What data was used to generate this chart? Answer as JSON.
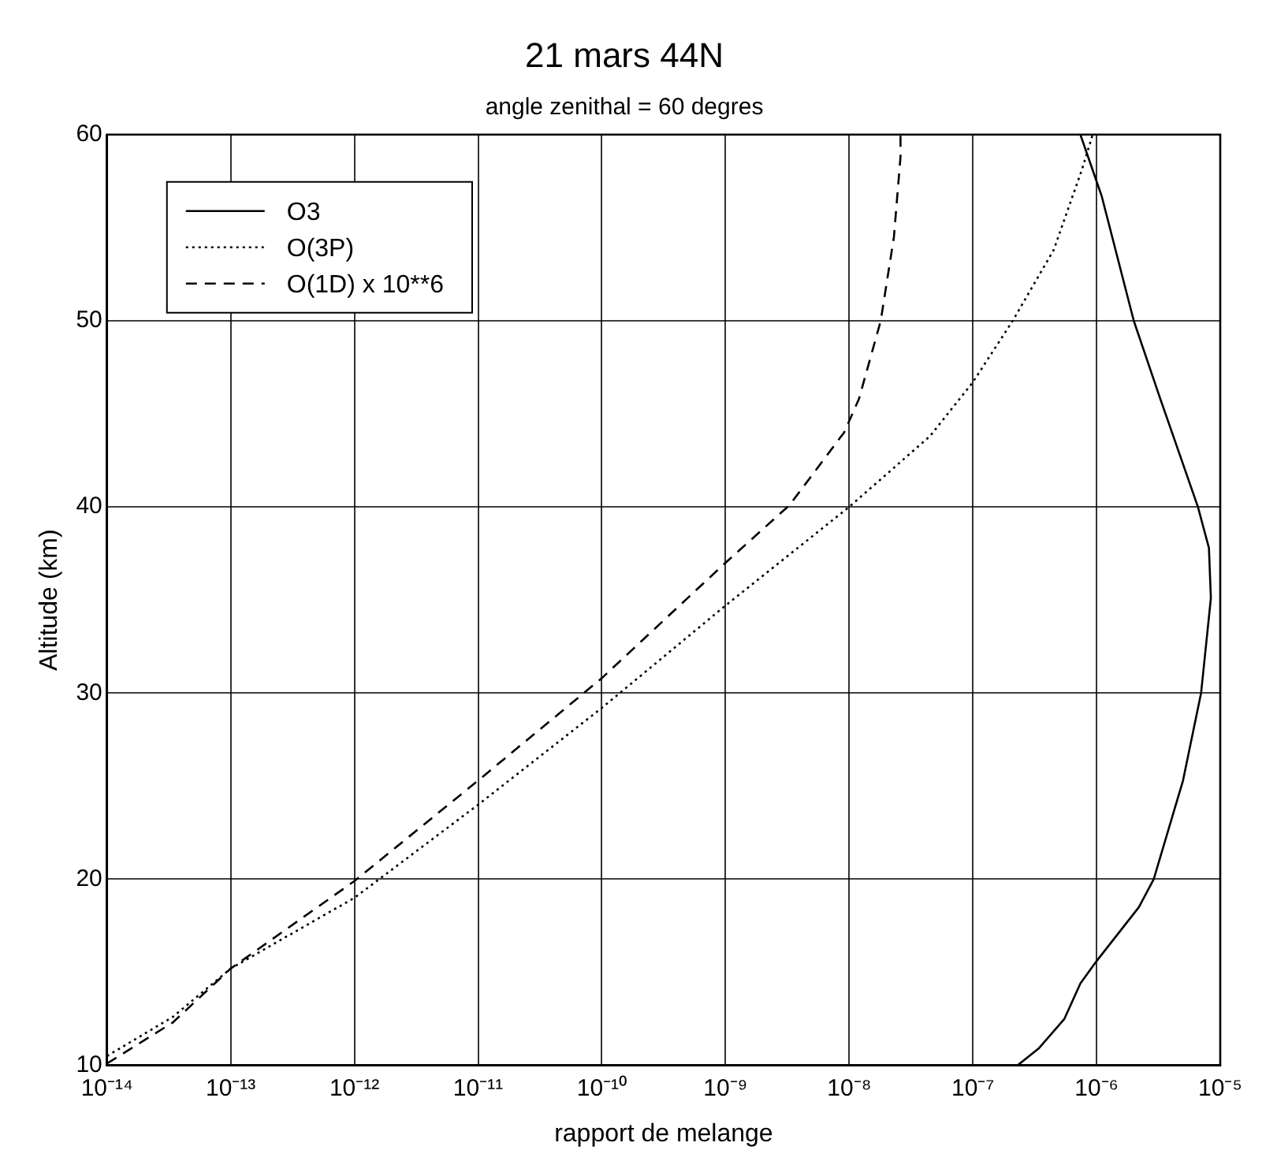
{
  "chart_data": {
    "type": "line",
    "title": "21 mars 44N",
    "subtitle": "angle zenithal = 60 degres",
    "xlabel": "rapport de melange",
    "ylabel": "Altitude (km)",
    "log": "x",
    "xlim": [
      1e-14,
      1e-05
    ],
    "xticks": [
      {
        "value": 1e-14,
        "label": "10⁻¹⁴"
      },
      {
        "value": 1e-13,
        "label": "10⁻¹³"
      },
      {
        "value": 1e-12,
        "label": "10⁻¹²"
      },
      {
        "value": 1e-11,
        "label": "10⁻¹¹"
      },
      {
        "value": 1e-10,
        "label": "10⁻¹⁰"
      },
      {
        "value": 1e-09,
        "label": "10⁻⁹"
      },
      {
        "value": 1e-08,
        "label": "10⁻⁸"
      },
      {
        "value": 1e-07,
        "label": "10⁻⁷"
      },
      {
        "value": 1e-06,
        "label": "10⁻⁶"
      },
      {
        "value": 1e-05,
        "label": "10⁻⁵"
      }
    ],
    "ylim": [
      10,
      60
    ],
    "yticks": [
      10,
      20,
      30,
      40,
      50,
      60
    ],
    "grid": true,
    "legend": "top left",
    "marker": "none",
    "series": [
      {
        "name": "O3",
        "color": "#000000",
        "line_style": "solid",
        "x": [
          2.3e-07,
          3.4e-07,
          5.5e-07,
          7.4e-07,
          1e-06,
          2.2e-06,
          2.9e-06,
          5e-06,
          7e-06,
          8.4e-06,
          8.1e-06,
          6.6e-06,
          3.2e-06,
          2e-06,
          1.1e-06,
          7.4e-07
        ],
        "values": [
          10,
          10.9,
          12.5,
          14.4,
          15.6,
          18.5,
          20,
          25.3,
          30,
          35.1,
          37.8,
          40,
          46,
          50,
          56.7,
          60
        ]
      },
      {
        "name": "O(3P)",
        "color": "#000000",
        "line_style": "dotted",
        "x": [
          1e-14,
          3.4e-14,
          1e-13,
          1e-12,
          1e-11,
          1e-10,
          1e-09,
          1e-08,
          4.5e-08,
          1e-07,
          2.1e-07,
          4.5e-07,
          7.6e-07,
          9.3e-07
        ],
        "values": [
          10.5,
          12.6,
          15.2,
          19,
          24,
          29.2,
          34.7,
          40,
          43.8,
          46.7,
          50,
          53.8,
          58.1,
          60
        ]
      },
      {
        "name": "O(1D) x 10**6",
        "color": "#000000",
        "line_style": "dashed",
        "x": [
          1e-14,
          3.4e-14,
          1e-13,
          1e-12,
          1e-11,
          1e-10,
          1e-09,
          3.3e-09,
          9.1e-09,
          1.2e-08,
          1.8e-08,
          2.3e-08,
          2.6e-08,
          2.6e-08
        ],
        "values": [
          10.1,
          12.3,
          15.2,
          19.9,
          25.3,
          30.8,
          37,
          40.1,
          44,
          45.8,
          50,
          54.5,
          58.8,
          60
        ]
      }
    ]
  }
}
